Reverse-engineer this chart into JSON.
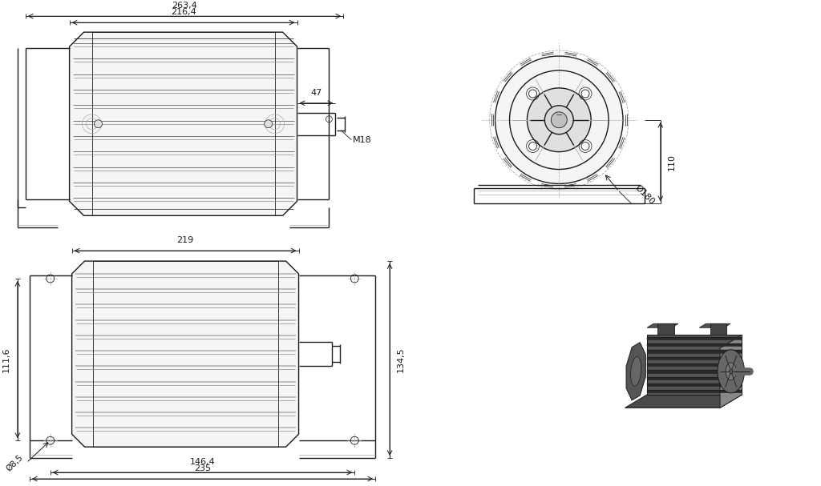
{
  "bg_color": "#ffffff",
  "line_color": "#1a1a1a",
  "dim_color": "#1a1a1a",
  "mid_gray": "#aaaaaa",
  "fill_light": "#f5f5f5",
  "fill_mid": "#e0e0e0",
  "fill_dark": "#888888",
  "fill_3d_body": "#5a5a5a",
  "fill_3d_fin": "#4a4a4a",
  "fill_3d_top": "#3a3a3a",
  "view1": {
    "label_263": "263,4",
    "label_216": "216,4",
    "label_47": "47",
    "label_M18": "M18"
  },
  "view2": {
    "label_dia180": "Ø180",
    "label_110": "110"
  },
  "view3": {
    "label_219": "219",
    "label_1116": "111,6",
    "label_1345": "134,5",
    "label_1464": "146,4",
    "label_235": "235",
    "label_dia85": "Ø8,5"
  }
}
